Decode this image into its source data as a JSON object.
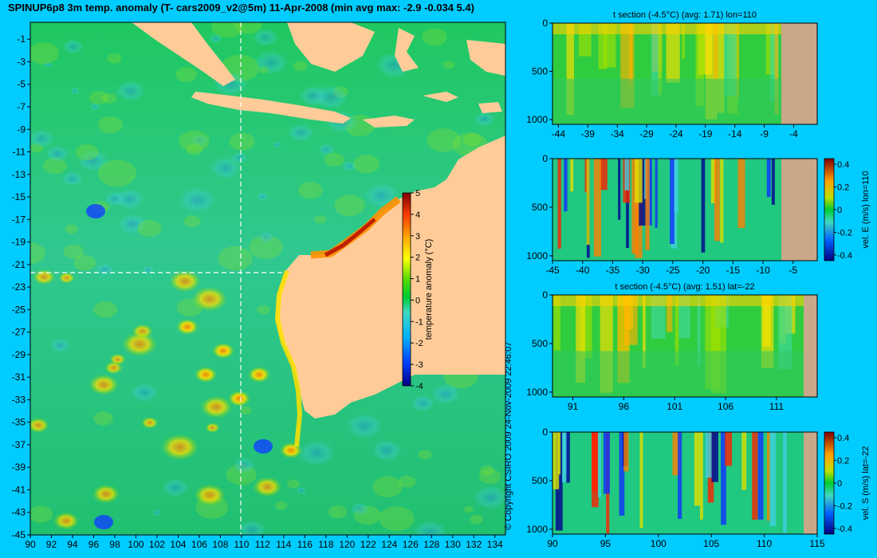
{
  "header": {
    "title": "SPINUP6p8 3m temp. anomaly (T- cars2009_v2@5m) 11-Apr-2008 (min avg max: -2.9 -0.034 5.4)"
  },
  "copyright": "© Copyright CSIRO 2009  24-Nov-2009 22:46:07",
  "colors": {
    "background": "#00ccff",
    "land": "#ffcc99",
    "section_land": "#c8a888",
    "colormap": [
      "#000080",
      "#0000ff",
      "#0080ff",
      "#00c0ff",
      "#40e0c0",
      "#00cc33",
      "#80e000",
      "#ffff00",
      "#ffc000",
      "#ff6000",
      "#e00000",
      "#800000"
    ]
  },
  "chart_data": [
    {
      "type": "heatmap",
      "name": "map",
      "title": "SPINUP6p8 3m temp. anomaly (T- cars2009_v2@5m) 11-Apr-2008 (min avg max: -2.9 -0.034 5.4)",
      "x_ticks": [
        "90",
        "92",
        "94",
        "96",
        "98",
        "100",
        "102",
        "104",
        "106",
        "108",
        "110",
        "112",
        "114",
        "116",
        "118",
        "120",
        "122",
        "124",
        "126",
        "128",
        "130",
        "132",
        "134"
      ],
      "y_ticks": [
        "-1",
        "-3",
        "-5",
        "-7",
        "-9",
        "-11",
        "-13",
        "-15",
        "-17",
        "-19",
        "-21",
        "-23",
        "-25",
        "-27",
        "-29",
        "-31",
        "-33",
        "-35",
        "-37",
        "-39",
        "-41",
        "-43",
        "-45"
      ],
      "xlim": [
        90,
        135
      ],
      "ylim": [
        -45,
        0.5
      ],
      "section_lon": 110,
      "section_lat": -22,
      "colorbar": {
        "label": "temperature anomaly (°C)",
        "ticks": [
          "5",
          "4",
          "3",
          "2",
          "1",
          "0",
          "-1",
          "-2",
          "-3",
          "-4"
        ],
        "range": [
          -4,
          5
        ]
      },
      "stats": {
        "min": -2.9,
        "avg": -0.034,
        "max": 5.4
      }
    },
    {
      "type": "heatmap",
      "name": "t-section-lon",
      "title": "t section (-4.5°C) (avg: 1.71) lon=110",
      "x_ticks": [
        "-44",
        "-39",
        "-34",
        "-29",
        "-24",
        "-19",
        "-14",
        "-9",
        "-4"
      ],
      "y_ticks": [
        "0",
        "500",
        "1000"
      ],
      "xlim": [
        -45,
        0
      ],
      "ylim": [
        1050,
        0
      ]
    },
    {
      "type": "heatmap",
      "name": "vel-e-section",
      "title": "",
      "x_ticks": [
        "-45",
        "-40",
        "-35",
        "-30",
        "-25",
        "-20",
        "-15",
        "-10",
        "-5"
      ],
      "y_ticks": [
        "0",
        "500",
        "1000"
      ],
      "xlim": [
        -45,
        -1
      ],
      "ylim": [
        1050,
        0
      ],
      "colorbar": {
        "label": "vel. E (m/s) lon=110",
        "ticks": [
          "0.4",
          "0.2",
          "0",
          "-0.2",
          "-0.4"
        ],
        "range": [
          -0.45,
          0.45
        ]
      }
    },
    {
      "type": "heatmap",
      "name": "t-section-lat",
      "title": "t section (-4.5°C) (avg: 1.51) lat=-22",
      "x_ticks": [
        "91",
        "96",
        "101",
        "106",
        "111"
      ],
      "y_ticks": [
        "0",
        "500",
        "1000"
      ],
      "xlim": [
        89,
        115
      ],
      "ylim": [
        1050,
        0
      ]
    },
    {
      "type": "heatmap",
      "name": "vel-s-section",
      "title": "",
      "x_ticks": [
        "90",
        "95",
        "100",
        "105",
        "110",
        "115"
      ],
      "y_ticks": [
        "0",
        "500",
        "1000"
      ],
      "xlim": [
        90,
        115
      ],
      "ylim": [
        1050,
        0
      ],
      "colorbar": {
        "label": "vel. S (m/s) lat=-22",
        "ticks": [
          "0.4",
          "0.2",
          "0",
          "-0.2",
          "-0.4"
        ],
        "range": [
          -0.45,
          0.45
        ]
      }
    }
  ]
}
